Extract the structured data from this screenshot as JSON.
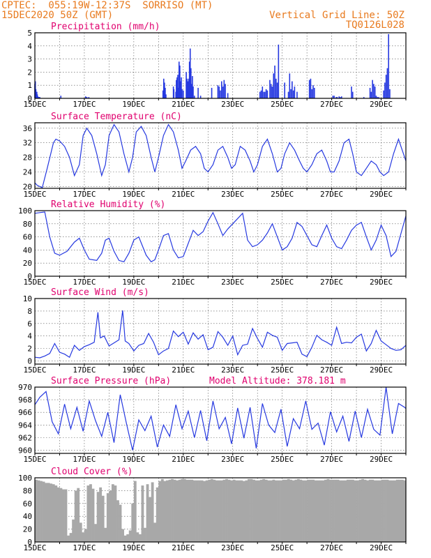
{
  "header": {
    "station": "CPTEC:  055:19W-12:37S  SORRISO (MT)",
    "run": "15DEC2020 50Z (GMT)",
    "grid_note": "Vertical Grid Line: 50Z",
    "model": "TQ0126L028"
  },
  "colors": {
    "series": "#2538e0",
    "cloud": "#a8a8a8",
    "title": "#e0006e",
    "header": "#e87a1e"
  },
  "chart_data": [
    {
      "id": "precip",
      "type": "bar",
      "title": "Precipitation (mm/h)",
      "x_unit": "days since 15DEC",
      "ylim": [
        0,
        5
      ],
      "yticks": [
        0,
        1,
        2,
        3,
        4,
        5
      ],
      "xticklabels": [
        "15DEC",
        "17DEC",
        "19DEC",
        "21DEC",
        "23DEC",
        "25DEC",
        "27DEC",
        "29DEC"
      ],
      "x": [
        0.0,
        0.02,
        0.04,
        0.06,
        0.08,
        0.1,
        0.12,
        0.14,
        0.16,
        0.2,
        1.05,
        2.05,
        2.1,
        2.18,
        5.18,
        5.21,
        5.24,
        5.27,
        5.3,
        5.6,
        5.62,
        5.7,
        5.72,
        5.75,
        5.78,
        5.8,
        5.83,
        5.86,
        5.89,
        5.92,
        5.95,
        6.0,
        6.12,
        6.15,
        6.18,
        6.22,
        6.25,
        6.28,
        6.31,
        6.34,
        6.37,
        6.4,
        6.45,
        6.6,
        6.7,
        7.15,
        7.4,
        7.45,
        7.5,
        7.55,
        7.6,
        7.65,
        7.7,
        7.8,
        9.1,
        9.15,
        9.2,
        9.25,
        9.3,
        9.35,
        9.4,
        9.5,
        9.55,
        9.6,
        9.65,
        9.7,
        9.75,
        9.8,
        9.85,
        10.1,
        10.25,
        10.3,
        10.35,
        10.4,
        10.45,
        10.5,
        10.6,
        11.1,
        11.15,
        11.2,
        11.25,
        11.3,
        12.05,
        12.1,
        12.18,
        12.22,
        12.3,
        12.35,
        12.4,
        12.8,
        12.85,
        13.3,
        13.55,
        13.6,
        13.65,
        13.7,
        13.75,
        13.8,
        13.85,
        13.9,
        14.1,
        14.15,
        14.2,
        14.25,
        14.3,
        14.35
      ],
      "values": [
        1.1,
        1.3,
        0.7,
        0.3,
        0.5,
        0.3,
        0.15,
        0.1,
        0.1,
        0.1,
        0.2,
        0.15,
        0.1,
        0.1,
        0.6,
        1.5,
        1.2,
        0.8,
        0.3,
        0.9,
        0.7,
        0.5,
        1.4,
        1.6,
        1.8,
        0.8,
        2.8,
        2.5,
        1.3,
        1.6,
        0.7,
        0.6,
        2.0,
        1.5,
        1.3,
        1.5,
        2.8,
        3.8,
        2.3,
        1.1,
        1.7,
        0.9,
        0.2,
        0.8,
        0.2,
        0.8,
        1.0,
        0.9,
        0.6,
        1.3,
        0.9,
        1.4,
        1.1,
        0.4,
        0.5,
        0.6,
        0.9,
        0.5,
        0.5,
        0.7,
        0.6,
        1.4,
        1.1,
        0.9,
        1.9,
        2.5,
        1.5,
        1.2,
        4.1,
        1.2,
        0.5,
        1.9,
        0.7,
        1.3,
        0.6,
        0.9,
        0.5,
        1.4,
        1.5,
        0.7,
        1.0,
        0.8,
        0.2,
        0.2,
        0.1,
        0.1,
        0.15,
        0.1,
        0.15,
        0.9,
        0.5,
        0.1,
        0.8,
        0.5,
        1.4,
        1.1,
        0.9,
        0.2,
        0.1,
        0.1,
        0.6,
        1.2,
        1.8,
        2.3,
        4.9,
        0.7
      ]
    },
    {
      "id": "temp",
      "type": "line",
      "title": "Surface Temperature (nC)",
      "x_unit": "days since 15DEC",
      "ylim": [
        19.5,
        37.5
      ],
      "yticks": [
        20,
        24,
        28,
        32,
        36
      ],
      "xticklabels": [
        "15DEC",
        "17DEC",
        "19DEC",
        "21DEC",
        "23DEC",
        "25DEC",
        "27DEC",
        "29DEC"
      ],
      "x": [
        0,
        0.1,
        0.3,
        0.5,
        0.75,
        0.85,
        1.0,
        1.2,
        1.4,
        1.6,
        1.8,
        1.95,
        2.1,
        2.3,
        2.5,
        2.7,
        2.85,
        3.0,
        3.2,
        3.4,
        3.6,
        3.8,
        3.95,
        4.1,
        4.3,
        4.5,
        4.7,
        4.85,
        5.0,
        5.2,
        5.4,
        5.6,
        5.8,
        5.95,
        6.1,
        6.3,
        6.5,
        6.7,
        6.85,
        7.0,
        7.2,
        7.4,
        7.6,
        7.8,
        7.95,
        8.1,
        8.3,
        8.5,
        8.7,
        8.85,
        9.0,
        9.2,
        9.4,
        9.6,
        9.8,
        9.95,
        10.1,
        10.3,
        10.5,
        10.7,
        10.85,
        11.0,
        11.2,
        11.4,
        11.6,
        11.8,
        11.95,
        12.1,
        12.3,
        12.5,
        12.7,
        12.85,
        13.0,
        13.2,
        13.4,
        13.6,
        13.8,
        13.95,
        14.1,
        14.3,
        14.5,
        14.7,
        14.85,
        15.0
      ],
      "values": [
        21,
        20.3,
        19.7,
        25,
        32,
        33,
        32.5,
        31,
        28,
        23,
        26,
        34,
        36,
        34,
        29,
        23,
        26,
        34,
        37,
        35,
        29,
        24,
        28,
        35,
        36.5,
        34,
        28,
        24,
        28,
        34,
        37,
        35,
        30,
        25,
        27,
        30,
        31,
        29,
        25,
        24,
        26,
        30,
        31,
        28,
        25,
        26,
        31,
        30,
        27,
        24,
        26,
        31,
        33,
        29,
        24,
        25,
        29,
        32,
        30,
        27,
        25,
        24,
        26,
        29,
        30,
        27,
        24,
        24,
        27,
        32,
        33,
        29,
        24,
        23,
        25,
        27,
        26,
        24,
        23,
        24,
        29,
        33,
        30,
        27
      ]
    },
    {
      "id": "rh",
      "type": "line",
      "title": "Relative Humidity (%)",
      "x_unit": "days since 15DEC",
      "ylim": [
        0,
        100
      ],
      "yticks": [
        0,
        20,
        40,
        60,
        80,
        100
      ],
      "xticklabels": [
        "15DEC",
        "17DEC",
        "19DEC",
        "21DEC",
        "23DEC",
        "25DEC",
        "27DEC",
        "29DEC"
      ],
      "x": [
        0,
        0.2,
        0.4,
        0.6,
        0.8,
        1.0,
        1.3,
        1.6,
        1.8,
        2.0,
        2.2,
        2.5,
        2.7,
        2.85,
        3.0,
        3.2,
        3.4,
        3.6,
        3.8,
        4.0,
        4.2,
        4.5,
        4.7,
        4.85,
        5.0,
        5.2,
        5.4,
        5.6,
        5.8,
        6.0,
        6.2,
        6.4,
        6.6,
        6.8,
        7.0,
        7.2,
        7.4,
        7.6,
        7.8,
        8.0,
        8.2,
        8.4,
        8.6,
        8.8,
        9.0,
        9.2,
        9.4,
        9.6,
        9.8,
        10.0,
        10.2,
        10.4,
        10.6,
        10.8,
        11.0,
        11.2,
        11.4,
        11.6,
        11.8,
        12.0,
        12.2,
        12.4,
        12.6,
        12.8,
        13.0,
        13.2,
        13.4,
        13.6,
        13.8,
        14.0,
        14.2,
        14.4,
        14.6,
        14.8,
        15.0
      ],
      "values": [
        96,
        97,
        98,
        60,
        35,
        32,
        38,
        52,
        58,
        40,
        26,
        24,
        35,
        55,
        58,
        38,
        24,
        22,
        35,
        55,
        60,
        32,
        22,
        25,
        40,
        62,
        65,
        40,
        28,
        30,
        50,
        70,
        62,
        68,
        84,
        97,
        80,
        62,
        72,
        80,
        88,
        96,
        55,
        45,
        48,
        55,
        66,
        80,
        60,
        40,
        45,
        58,
        82,
        76,
        62,
        48,
        45,
        62,
        78,
        58,
        45,
        42,
        55,
        70,
        78,
        82,
        60,
        40,
        55,
        78,
        62,
        30,
        38,
        65,
        92
      ]
    },
    {
      "id": "wind",
      "type": "line",
      "title": "Surface Wind (m/s)",
      "x_unit": "days since 15DEC",
      "ylim": [
        -0.5,
        10
      ],
      "yticks": [
        0,
        2,
        4,
        6,
        8,
        10
      ],
      "xticklabels": [
        "15DEC",
        "17DEC",
        "19DEC",
        "21DEC",
        "23DEC",
        "25DEC",
        "27DEC",
        "29DEC"
      ],
      "x": [
        0,
        0.2,
        0.4,
        0.6,
        0.8,
        1.0,
        1.2,
        1.4,
        1.6,
        1.8,
        2.0,
        2.2,
        2.4,
        2.55,
        2.65,
        2.8,
        3.0,
        3.2,
        3.4,
        3.55,
        3.65,
        3.8,
        4.0,
        4.2,
        4.4,
        4.6,
        4.8,
        5.0,
        5.2,
        5.4,
        5.6,
        5.8,
        6.0,
        6.2,
        6.4,
        6.6,
        6.8,
        7.0,
        7.2,
        7.4,
        7.6,
        7.8,
        8.0,
        8.2,
        8.4,
        8.6,
        8.8,
        9.0,
        9.2,
        9.4,
        9.6,
        9.8,
        10.0,
        10.2,
        10.4,
        10.6,
        10.8,
        11.0,
        11.2,
        11.4,
        11.6,
        11.8,
        12.0,
        12.2,
        12.4,
        12.6,
        12.8,
        13.0,
        13.2,
        13.4,
        13.6,
        13.8,
        14.0,
        14.2,
        14.4,
        14.6,
        14.8,
        15.0
      ],
      "values": [
        0.6,
        0.5,
        0.8,
        1.2,
        2.8,
        1.4,
        1.1,
        0.6,
        2.5,
        1.7,
        2.3,
        2.6,
        3.0,
        7.8,
        3.7,
        4.0,
        2.4,
        2.9,
        3.4,
        8.1,
        3.2,
        2.8,
        1.6,
        2.5,
        2.8,
        4.4,
        3.0,
        1.0,
        1.6,
        2.0,
        4.8,
        3.9,
        4.6,
        2.7,
        4.5,
        3.5,
        4.2,
        1.8,
        2.2,
        4.7,
        3.8,
        2.5,
        4.0,
        1.0,
        2.5,
        2.7,
        5.2,
        3.6,
        2.2,
        4.6,
        4.1,
        3.8,
        1.7,
        2.8,
        2.9,
        3.0,
        1.1,
        0.7,
        2.2,
        4.1,
        3.4,
        3.0,
        2.5,
        5.4,
        2.8,
        3.0,
        2.9,
        3.8,
        4.3,
        1.6,
        2.8,
        4.9,
        3.2,
        2.6,
        2.0,
        1.7,
        1.8,
        2.5
      ]
    },
    {
      "id": "pressure",
      "type": "line",
      "title": "Surface Pressure (hPa)",
      "annotation": "Model Altitude: 378.181 m",
      "x_unit": "days since 15DEC",
      "ylim": [
        959.5,
        970
      ],
      "yticks": [
        960,
        962,
        964,
        966,
        968,
        970
      ],
      "xticklabels": [
        "15DEC",
        "17DEC",
        "19DEC",
        "21DEC",
        "23DEC",
        "25DEC",
        "27DEC",
        "29DEC"
      ],
      "x": [
        0,
        0.2,
        0.45,
        0.7,
        0.95,
        1.2,
        1.45,
        1.7,
        1.95,
        2.2,
        2.45,
        2.7,
        2.95,
        3.2,
        3.45,
        3.7,
        3.95,
        4.2,
        4.45,
        4.7,
        4.95,
        5.2,
        5.45,
        5.7,
        5.95,
        6.2,
        6.45,
        6.7,
        6.95,
        7.2,
        7.45,
        7.7,
        7.95,
        8.2,
        8.45,
        8.7,
        8.95,
        9.2,
        9.45,
        9.7,
        9.95,
        10.2,
        10.45,
        10.7,
        10.95,
        11.2,
        11.45,
        11.7,
        11.95,
        12.2,
        12.45,
        12.7,
        12.95,
        13.2,
        13.45,
        13.7,
        13.95,
        14.2,
        14.45,
        14.7,
        14.95,
        15.0
      ],
      "values": [
        967.2,
        968.4,
        969.3,
        964.5,
        962.6,
        967.3,
        963.4,
        966.8,
        963.0,
        967.8,
        964.7,
        962.2,
        966.0,
        961.2,
        968.8,
        964.3,
        960.0,
        964.8,
        963.1,
        965.4,
        960.5,
        964.0,
        962.2,
        967.2,
        963.4,
        966.2,
        962.0,
        966.3,
        961.5,
        967.8,
        963.4,
        965.2,
        961.0,
        966.7,
        961.9,
        966.8,
        960.3,
        967.4,
        964.0,
        962.8,
        966.5,
        960.6,
        965.0,
        963.4,
        967.8,
        963.3,
        964.3,
        960.8,
        966.1,
        962.9,
        965.4,
        961.4,
        966.2,
        962.0,
        966.5,
        963.3,
        962.4,
        970.0,
        962.6,
        967.4,
        966.8,
        966.6
      ]
    },
    {
      "id": "cloud",
      "type": "bar",
      "title": "Cloud Cover (%)",
      "x_unit": "days since 15DEC",
      "ylim": [
        0,
        100
      ],
      "yticks": [
        0,
        20,
        40,
        60,
        80,
        100
      ],
      "xticklabels": [
        "15DEC",
        "17DEC",
        "19DEC",
        "21DEC",
        "23DEC",
        "25DEC",
        "27DEC",
        "29DEC"
      ],
      "x": [
        0.0,
        0.1,
        0.2,
        0.3,
        0.4,
        0.5,
        0.6,
        0.7,
        0.8,
        0.9,
        1.0,
        1.1,
        1.2,
        1.3,
        1.4,
        1.5,
        1.6,
        1.7,
        1.8,
        1.9,
        2.0,
        2.1,
        2.2,
        2.3,
        2.4,
        2.5,
        2.6,
        2.7,
        2.8,
        2.9,
        3.0,
        3.1,
        3.2,
        3.3,
        3.4,
        3.5,
        3.6,
        3.7,
        3.8,
        3.9,
        4.0,
        4.1,
        4.2,
        4.3,
        4.4,
        4.5,
        4.6,
        4.7,
        4.8,
        4.9,
        5.0,
        5.1,
        5.2,
        5.3,
        5.4,
        5.5,
        5.6,
        5.7,
        5.8,
        5.9,
        6.0,
        6.1,
        6.2,
        6.3,
        6.4,
        6.5,
        6.6,
        6.7,
        6.8,
        6.9,
        7.0,
        7.1,
        7.2,
        7.3,
        7.4,
        7.5,
        7.6,
        7.7,
        7.8,
        7.9,
        8.0,
        8.1,
        8.2,
        8.3,
        8.4,
        8.5,
        8.6,
        8.7,
        8.8,
        8.9,
        9.0,
        9.1,
        9.2,
        9.3,
        9.4,
        9.5,
        9.6,
        9.7,
        9.8,
        9.9,
        10.0,
        10.1,
        10.2,
        10.3,
        10.4,
        10.5,
        10.6,
        10.7,
        10.8,
        10.9,
        11.0,
        11.1,
        11.2,
        11.3,
        11.4,
        11.5,
        11.6,
        11.7,
        11.8,
        11.9,
        12.0,
        12.1,
        12.2,
        12.3,
        12.4,
        12.5,
        12.6,
        12.7,
        12.8,
        12.9,
        13.0,
        13.1,
        13.2,
        13.3,
        13.4,
        13.5,
        13.6,
        13.7,
        13.8,
        13.9,
        14.0,
        14.1,
        14.2,
        14.3,
        14.4,
        14.5,
        14.6,
        14.7,
        14.8,
        14.9
      ],
      "values": [
        97,
        96,
        95,
        94,
        92,
        92,
        91,
        90,
        88,
        85,
        84,
        82,
        82,
        10,
        14,
        35,
        80,
        84,
        30,
        15,
        20,
        88,
        90,
        83,
        28,
        78,
        85,
        72,
        22,
        76,
        80,
        90,
        88,
        65,
        58,
        20,
        10,
        12,
        18,
        60,
        95,
        15,
        12,
        88,
        22,
        90,
        70,
        93,
        30,
        85,
        95,
        98,
        95,
        96,
        97,
        98,
        97,
        96,
        97,
        98,
        98,
        97,
        97,
        97,
        96,
        96,
        96,
        96,
        95,
        96,
        97,
        98,
        97,
        96,
        96,
        96,
        97,
        98,
        97,
        96,
        97,
        96,
        96,
        96,
        95,
        96,
        98,
        98,
        97,
        96,
        96,
        97,
        98,
        97,
        96,
        96,
        97,
        96,
        96,
        96,
        97,
        97,
        98,
        97,
        96,
        97,
        98,
        97,
        96,
        96,
        97,
        97,
        97,
        96,
        96,
        96,
        96,
        97,
        98,
        97,
        97,
        97,
        97,
        96,
        96,
        96,
        97,
        97,
        97,
        96,
        96,
        97,
        98,
        97,
        96,
        97,
        97,
        96,
        96,
        96,
        97,
        97,
        97,
        96,
        96,
        96,
        97,
        97,
        97,
        96
      ]
    }
  ]
}
